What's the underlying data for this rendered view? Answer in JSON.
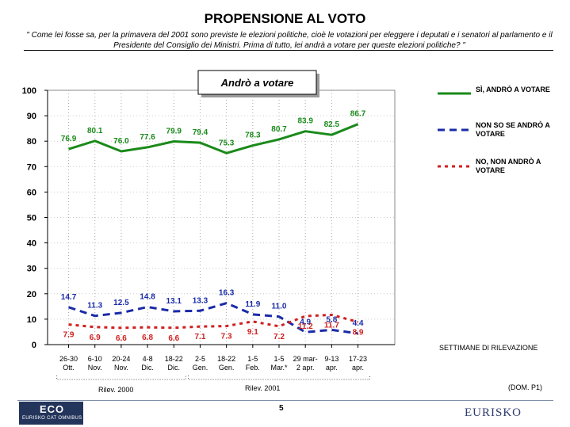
{
  "page": {
    "title": "PROPENSIONE AL VOTO",
    "question": "\" Come lei fosse sa, per la primavera del 2001 sono previste le elezioni politiche, cioè le votazioni per eleggere i deputati e i senatori al parlamento e il Presidente del Consiglio dei Ministri. Prima di tutto, lei andrà a votare per queste elezioni politiche? \"",
    "page_number": "5",
    "source_note": "(DOM. P1)",
    "xaxis_caption": "SETTIMANE DI RILEVAZIONE",
    "group_2000": "Rilev. 2000",
    "group_2001": "Rilev. 2001",
    "logo_left": "ECO",
    "logo_left_sub": "EURISKO CAT OMNIBUS",
    "logo_right": "EURISKO"
  },
  "chart_data": {
    "type": "line",
    "title": "Andrò a votare",
    "ylim": [
      0,
      100
    ],
    "yticks": [
      0,
      10,
      20,
      30,
      40,
      50,
      60,
      70,
      80,
      90,
      100
    ],
    "grid": true,
    "legend_position": "right",
    "categories": [
      [
        "26-30",
        "Ott."
      ],
      [
        "6-10",
        "Nov."
      ],
      [
        "20-24",
        "Nov."
      ],
      [
        "4-8",
        "Dic."
      ],
      [
        "18-22",
        "Dic."
      ],
      [
        "2-5",
        "Gen."
      ],
      [
        "18-22",
        "Gen."
      ],
      [
        "1-5",
        "Feb."
      ],
      [
        "1-5",
        "Mar.*"
      ],
      [
        "29 mar-",
        "2 apr."
      ],
      [
        "9-13",
        "apr."
      ],
      [
        "17-23",
        "apr."
      ]
    ],
    "series": [
      {
        "name": "SÌ, ANDRÒ A VOTARE",
        "color": "#1a8a1a",
        "style": "solid",
        "values": [
          76.9,
          80.1,
          76.0,
          77.6,
          79.9,
          79.4,
          75.3,
          78.3,
          80.7,
          83.9,
          82.5,
          86.7
        ],
        "labels": [
          "76.9",
          "80.1",
          "76.0",
          "77.6",
          "79.9",
          "79.4",
          "75.3",
          "78.3",
          "80.7",
          "83.9",
          "82.5",
          "86.7"
        ]
      },
      {
        "name": "NON SO SE ANDRÒ A VOTARE",
        "color": "#1a2aa8",
        "style": "dash",
        "values": [
          14.7,
          11.3,
          12.5,
          14.8,
          13.1,
          13.3,
          16.3,
          11.9,
          11.0,
          4.9,
          5.8,
          4.4
        ],
        "labels": [
          "14.7",
          "11.3",
          "12.5",
          "14.8",
          "13.1",
          "13.3",
          "16.3",
          "11.9",
          "11.0",
          "4.9",
          "5.8",
          "4.4"
        ]
      },
      {
        "name": "NO, NON ANDRÒ A VOTARE",
        "color": "#d02020",
        "style": "dot",
        "values": [
          7.9,
          6.9,
          6.6,
          6.8,
          6.6,
          7.1,
          7.3,
          9.1,
          7.2,
          11.2,
          11.7,
          8.9
        ],
        "labels": [
          "7.9",
          "6.9",
          "6.6",
          "6.8",
          "6.6",
          "7.1",
          "7.3",
          "9.1",
          "7.2",
          "11.2",
          "11.7",
          "8.9"
        ]
      }
    ]
  }
}
